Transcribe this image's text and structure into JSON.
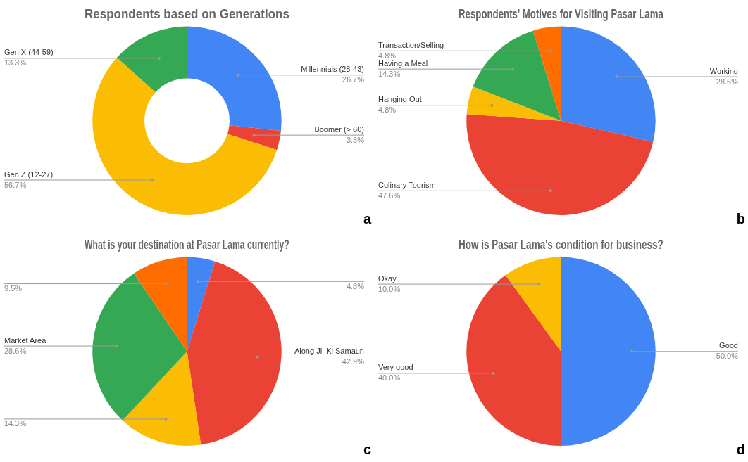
{
  "chart_data": [
    {
      "type": "donut",
      "title": "Respondents based on Generations",
      "categories": [
        "Millennials (28-43)",
        "Boomer (> 60)",
        "Gen Z (12-27)",
        "Gen X (44-59)"
      ],
      "values": [
        26.7,
        3.3,
        56.7,
        13.3
      ],
      "value_labels": [
        "26.7%",
        "3.3%",
        "56.7%",
        "13.3%"
      ],
      "colors": [
        "#4285f4",
        "#ea4335",
        "#fbbc04",
        "#34a853"
      ],
      "legend": false,
      "annotations": [
        "a"
      ]
    },
    {
      "type": "pie",
      "title": "Respondents' Motives for Visiting Pasar Lama",
      "categories": [
        "Working",
        "Culinary Tourism",
        "Hanging Out",
        "Having a Meal",
        "Transaction/Selling"
      ],
      "values": [
        28.6,
        47.6,
        4.8,
        14.3,
        4.8
      ],
      "value_labels": [
        "28.6%",
        "47.6%",
        "4.8%",
        "14.3%",
        "4.8%"
      ],
      "colors": [
        "#4285f4",
        "#ea4335",
        "#fbbc04",
        "#34a853",
        "#ff6d01"
      ],
      "legend": false,
      "annotations": [
        "b"
      ]
    },
    {
      "type": "pie",
      "title": "What is your destination at Pasar Lama currently?",
      "categories": [
        null,
        "Along Jl. Ki Samaun",
        null,
        "Market Area",
        null
      ],
      "values": [
        4.8,
        42.9,
        14.3,
        28.6,
        9.5
      ],
      "value_labels": [
        "4.8%",
        "42.9%",
        "14.3%",
        "28.6%",
        "9.5%"
      ],
      "colors": [
        "#4285f4",
        "#ea4335",
        "#fbbc04",
        "#34a853",
        "#ff6d01"
      ],
      "legend": false,
      "annotations": [
        "c"
      ]
    },
    {
      "type": "pie",
      "title": "How is Pasar Lama's condition for business?",
      "categories": [
        "Good",
        "Very good",
        "Okay"
      ],
      "values": [
        50.0,
        40.0,
        10.0
      ],
      "value_labels": [
        "50.0%",
        "40.0%",
        "10.0%"
      ],
      "colors": [
        "#4285f4",
        "#ea4335",
        "#fbbc04"
      ],
      "legend": false,
      "annotations": [
        "d"
      ]
    }
  ]
}
